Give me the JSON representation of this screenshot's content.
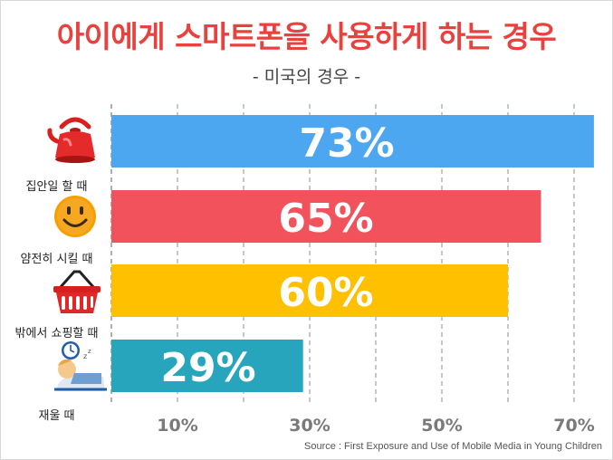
{
  "title": "아이에게 스마트폰을 사용하게 하는 경우",
  "subtitle": "- 미국의 경우 -",
  "source": "Source : First Exposure and Use of Mobile Media in Young Children",
  "chart_data": {
    "type": "bar",
    "orientation": "horizontal",
    "title": "아이에게 스마트폰을 사용하게 하는 경우",
    "subtitle": "- 미국의 경우 -",
    "categories": [
      "집안일 할 때",
      "얌전히 시킬 때",
      "밖에서 쇼핑할 때",
      "재울 때"
    ],
    "icons": [
      "kettle-icon",
      "smiley-icon",
      "shopping-basket-icon",
      "sleeping-child-icon"
    ],
    "values": [
      73,
      65,
      60,
      29
    ],
    "value_labels": [
      "73%",
      "65%",
      "60%",
      "29%"
    ],
    "colors": [
      "#4da6f0",
      "#f2525c",
      "#ffc000",
      "#27a5bd"
    ],
    "xlim": [
      0,
      73
    ],
    "xticks": [
      10,
      30,
      50,
      70
    ],
    "xtick_labels": [
      "10%",
      "30%",
      "50%",
      "70%"
    ],
    "gridlines": [
      0,
      10,
      20,
      30,
      40,
      50,
      60,
      70
    ],
    "grid": true,
    "xlabel": "",
    "ylabel": ""
  }
}
